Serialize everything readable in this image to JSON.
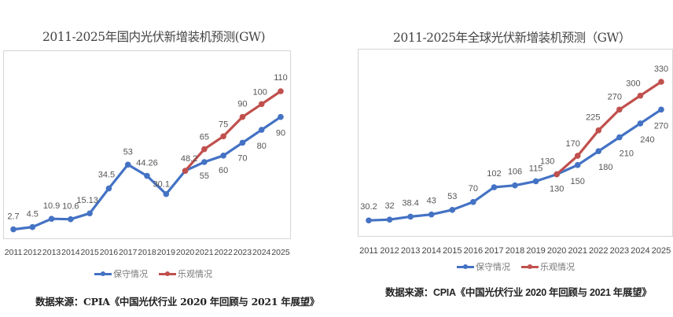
{
  "chart_data": [
    {
      "type": "line",
      "title": "2011-2025年国内光伏新增装机预测(GW)",
      "xlabel": "",
      "ylabel": "",
      "ylim": [
        0,
        115
      ],
      "grid": false,
      "legend_position": "bottom",
      "x": [
        "2011",
        "2012",
        "2013",
        "2014",
        "2015",
        "2016",
        "2017",
        "2018",
        "2019",
        "2020",
        "2021",
        "2022",
        "2023",
        "2024",
        "2025"
      ],
      "series": [
        {
          "name": "保守情况",
          "color": "#4472C4",
          "values": [
            2.7,
            4.5,
            10.9,
            10.6,
            15.13,
            34.5,
            53,
            44.26,
            30.1,
            48.2,
            55,
            60,
            70,
            80,
            90
          ],
          "labels": [
            "2.7",
            "4.5",
            "10.9",
            "10.6",
            "15.13",
            "34.5",
            "53",
            "44.26",
            "30.1",
            "48.2",
            "55",
            "60",
            "70",
            "80",
            "90"
          ]
        },
        {
          "name": "乐观情况",
          "color": "#C0504D",
          "values": [
            null,
            null,
            null,
            null,
            null,
            null,
            null,
            null,
            null,
            48.2,
            65,
            75,
            90,
            100,
            110
          ],
          "labels": [
            null,
            null,
            null,
            null,
            null,
            null,
            null,
            null,
            null,
            null,
            "65",
            "75",
            "90",
            "100",
            "110"
          ]
        }
      ],
      "source": "数据来源：CPIA《中国光伏行业 2020 年回顾与 2021 年展望》"
    },
    {
      "type": "line",
      "title": "2011-2025年全球光伏新增装机预测（GW）",
      "xlabel": "",
      "ylabel": "",
      "ylim": [
        0,
        345
      ],
      "grid": false,
      "legend_position": "bottom",
      "x": [
        "2011",
        "2012",
        "2013",
        "2014",
        "2015",
        "2016",
        "2017",
        "2018",
        "2019",
        "2020",
        "2021",
        "2022",
        "2023",
        "2024",
        "2025"
      ],
      "series": [
        {
          "name": "保守情况",
          "color": "#4472C4",
          "values": [
            30.2,
            32,
            38.4,
            43,
            53,
            70,
            102,
            106,
            115,
            130,
            150,
            180,
            210,
            240,
            270
          ],
          "labels": [
            "30.2",
            "32",
            "38.4",
            "43",
            "53",
            "70",
            "102",
            "106",
            "115",
            "130",
            "150",
            "180",
            "210",
            "240",
            "270"
          ]
        },
        {
          "name": "乐观情况",
          "color": "#C0504D",
          "values": [
            null,
            null,
            null,
            null,
            null,
            null,
            null,
            null,
            null,
            130,
            170,
            225,
            270,
            300,
            330
          ],
          "labels": [
            null,
            null,
            null,
            null,
            null,
            null,
            null,
            null,
            null,
            "130",
            "170",
            "225",
            "270",
            "300",
            "330"
          ]
        }
      ],
      "source": "数据来源：CPIA《中国光伏行业 2020 年回顾与 2021 年展望》"
    }
  ]
}
